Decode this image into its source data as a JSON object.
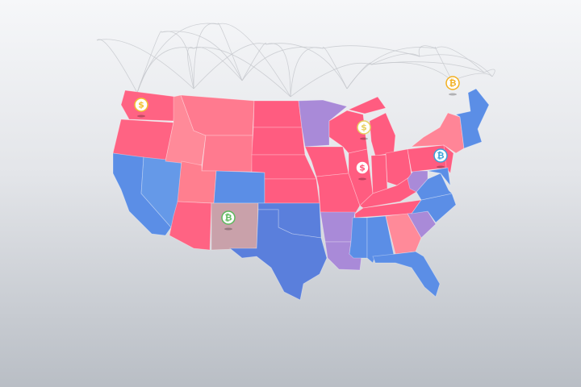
{
  "palette": {
    "red": "#ff5c80",
    "pink": "#ff8597",
    "blue": "#5b8ee6",
    "purple": "#a98ad8",
    "mauve": "#c9a1aa",
    "arc": "#c4c7cc"
  },
  "states": {
    "WA": "#ff6383",
    "OR": "#ff6383",
    "CA": "#5b8ee6",
    "NV": "#6599e8",
    "ID": "#ff8a99",
    "MT": "#ff7a8f",
    "WY": "#ff7a8f",
    "UT": "#ff7f8f",
    "CO": "#5b8ee6",
    "AZ": "#ff6383",
    "NM": "#c9a1aa",
    "ND": "#ff5c80",
    "SD": "#ff5c80",
    "NE": "#ff5c80",
    "KS": "#ff5c80",
    "OK": "#5a7fdc",
    "TX": "#5a7fdc",
    "MN": "#a98ad8",
    "IA": "#ff5c80",
    "MO": "#ff5c80",
    "AR": "#a98ad8",
    "LA": "#a98ad8",
    "WI": "#ff5c80",
    "IL": "#ff5c80",
    "MI": "#ff5c80",
    "IN": "#ff5c80",
    "OH": "#ff5c80",
    "KY": "#ff5c80",
    "TN": "#ff5c80",
    "MS": "#5b8ee6",
    "AL": "#5b8ee6",
    "GA": "#ff8a99",
    "FL": "#5b8ee6",
    "SC": "#a98ad8",
    "NC": "#5b8ee6",
    "VA": "#5b8ee6",
    "WV": "#a98ad8",
    "PA": "#ff5c80",
    "NY": "#ff8597",
    "NJ": "#ff5c80",
    "MD": "#5b8ee6",
    "NE_REGION": "#5b8ee6"
  },
  "pins": [
    {
      "state": "WA",
      "icon": "dollar-icon",
      "glyph": "$",
      "color": "#f2c230"
    },
    {
      "state": "NM",
      "icon": "bitcoin-icon",
      "glyph": "₿",
      "color": "#5cb85c"
    },
    {
      "state": "WI",
      "icon": "dollar-icon",
      "glyph": "$",
      "color": "#e8d060"
    },
    {
      "state": "IL",
      "icon": "dollar-icon",
      "glyph": "$",
      "color": "#ff5c80"
    },
    {
      "state": "PA",
      "icon": "bitcoin-icon",
      "glyph": "₿",
      "color": "#3aa0d8"
    },
    {
      "state": "ME",
      "icon": "bitcoin-icon",
      "glyph": "₿",
      "color": "#f2b020"
    }
  ]
}
